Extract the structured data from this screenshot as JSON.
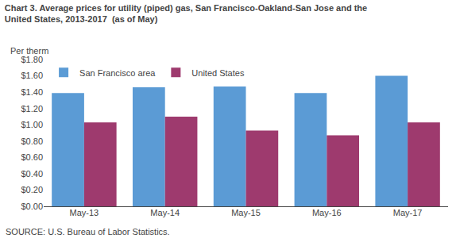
{
  "chart_data": {
    "type": "bar",
    "title": "Chart 3. Average prices for utility (piped) gas, San Francisco-Oakland-San Jose and the\nUnited States, 2013-2017  (as of May)",
    "ylabel": "Per therm",
    "annotations": [
      "SOURCE: U.S. Bureau of Labor Statistics."
    ],
    "categories": [
      "May-13",
      "May-14",
      "May-15",
      "May-16",
      "May-17"
    ],
    "series": [
      {
        "name": "San Francisco area",
        "color": "#5B9BD5",
        "values": [
          1.39,
          1.46,
          1.47,
          1.39,
          1.6
        ]
      },
      {
        "name": "United States",
        "color": "#9E3A6E",
        "values": [
          1.03,
          1.1,
          0.93,
          0.87,
          1.03
        ]
      }
    ],
    "ylim": [
      0.0,
      1.8
    ],
    "yticks": [
      {
        "value": 0.0,
        "label": "$0.00"
      },
      {
        "value": 0.2,
        "label": "$0.20"
      },
      {
        "value": 0.4,
        "label": "$0.40"
      },
      {
        "value": 0.6,
        "label": "$0.60"
      },
      {
        "value": 0.8,
        "label": "$0.80"
      },
      {
        "value": 1.0,
        "label": "$1.00"
      },
      {
        "value": 1.2,
        "label": "$1.20"
      },
      {
        "value": 1.4,
        "label": "$1.40"
      },
      {
        "value": 1.6,
        "label": "$1.60"
      },
      {
        "value": 1.8,
        "label": "$1.80"
      }
    ],
    "legend": "upper left",
    "grid": false
  }
}
